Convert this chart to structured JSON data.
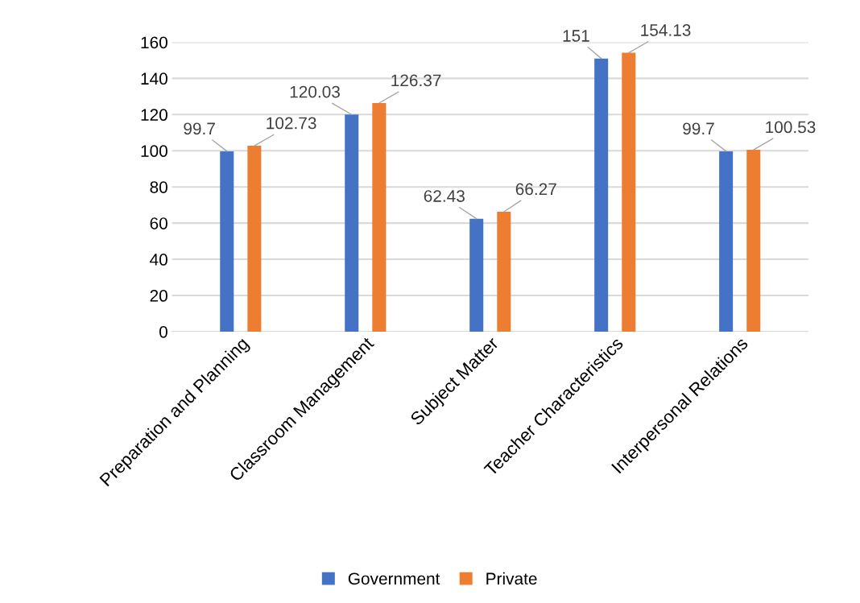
{
  "chart_data": {
    "type": "bar",
    "categories": [
      "Preparation and Planning",
      "Classroom Management",
      "Subject Matter",
      "Teacher Characteristics",
      "Interpersonal Relations"
    ],
    "series": [
      {
        "name": "Government",
        "color": "#4472c4",
        "values": [
          99.7,
          120.03,
          62.43,
          151,
          99.7
        ]
      },
      {
        "name": "Private",
        "color": "#ed7d31",
        "values": [
          102.73,
          126.37,
          66.27,
          154.13,
          100.53
        ]
      }
    ],
    "ylim": [
      0,
      160
    ],
    "yticks": [
      0,
      20,
      40,
      60,
      80,
      100,
      120,
      140,
      160
    ],
    "grid": "y",
    "legend": "bottom",
    "data_labels": true
  }
}
